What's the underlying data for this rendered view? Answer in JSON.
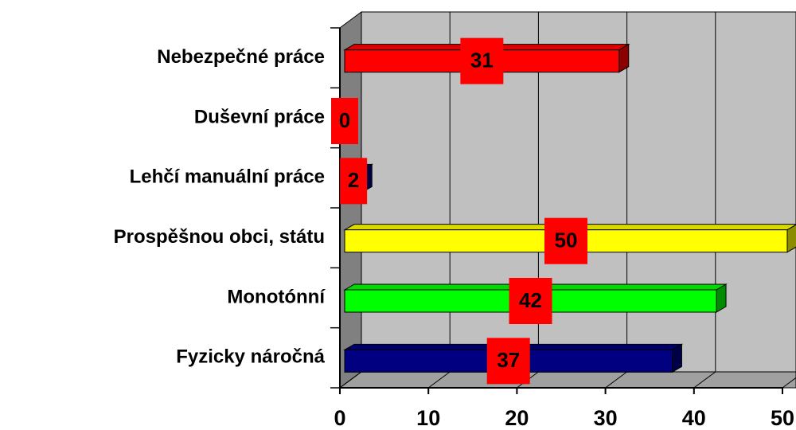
{
  "chart_data": {
    "type": "bar3d",
    "categories": [
      "Nebezpečné práce",
      "Duševní práce",
      "Lehčí manuální práce",
      "Prospěšnou obci, státu",
      "Monotónní",
      "Fyzicky náročná"
    ],
    "values": [
      31,
      0,
      2,
      50,
      42,
      37
    ],
    "colors": [
      "#ff0000",
      "#000080",
      "#000080",
      "#ffff00",
      "#00ff00",
      "#000080"
    ],
    "label_color": "#ff0000",
    "xlim": [
      0,
      50
    ],
    "xticks": [
      0,
      10,
      20,
      30,
      40,
      50
    ],
    "grid": true
  }
}
